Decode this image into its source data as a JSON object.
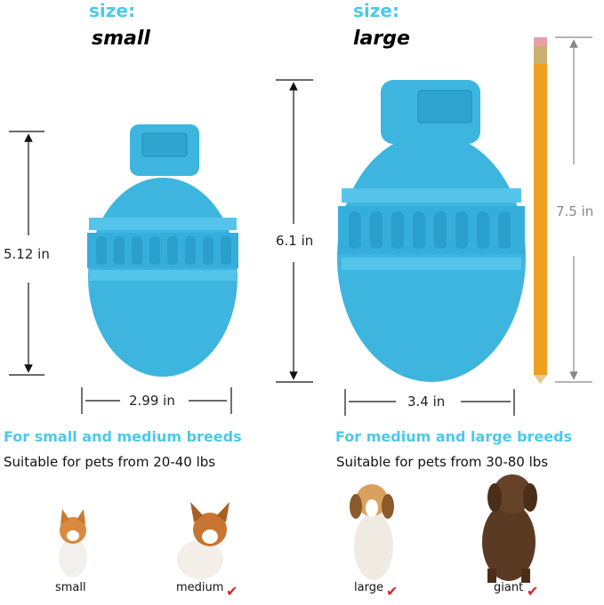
{
  "small": {
    "size_label": "size:",
    "size_value": "small",
    "height": "5.12 in",
    "width": "2.99 in",
    "heading": "For small and medium breeds",
    "suitability": "Suitable for pets from 20-40 lbs"
  },
  "large": {
    "size_label": "size:",
    "size_value": "large",
    "height": "6.1 in",
    "width": "3.4 in",
    "heading": "For medium and large breeds",
    "suitability": "Suitable for pets from 30-80 lbs"
  },
  "pencil": {
    "height": "7.5 in"
  },
  "dogs": [
    {
      "label": "small",
      "checked": false
    },
    {
      "label": "medium",
      "checked": true
    },
    {
      "label": "large",
      "checked": true
    },
    {
      "label": "giant",
      "checked": true
    }
  ],
  "colors": {
    "accent": "#4cc9ea",
    "toy": "#3db5df",
    "check": "#d9232e",
    "pencil": "#f0a020"
  },
  "check_glyph": "✔"
}
